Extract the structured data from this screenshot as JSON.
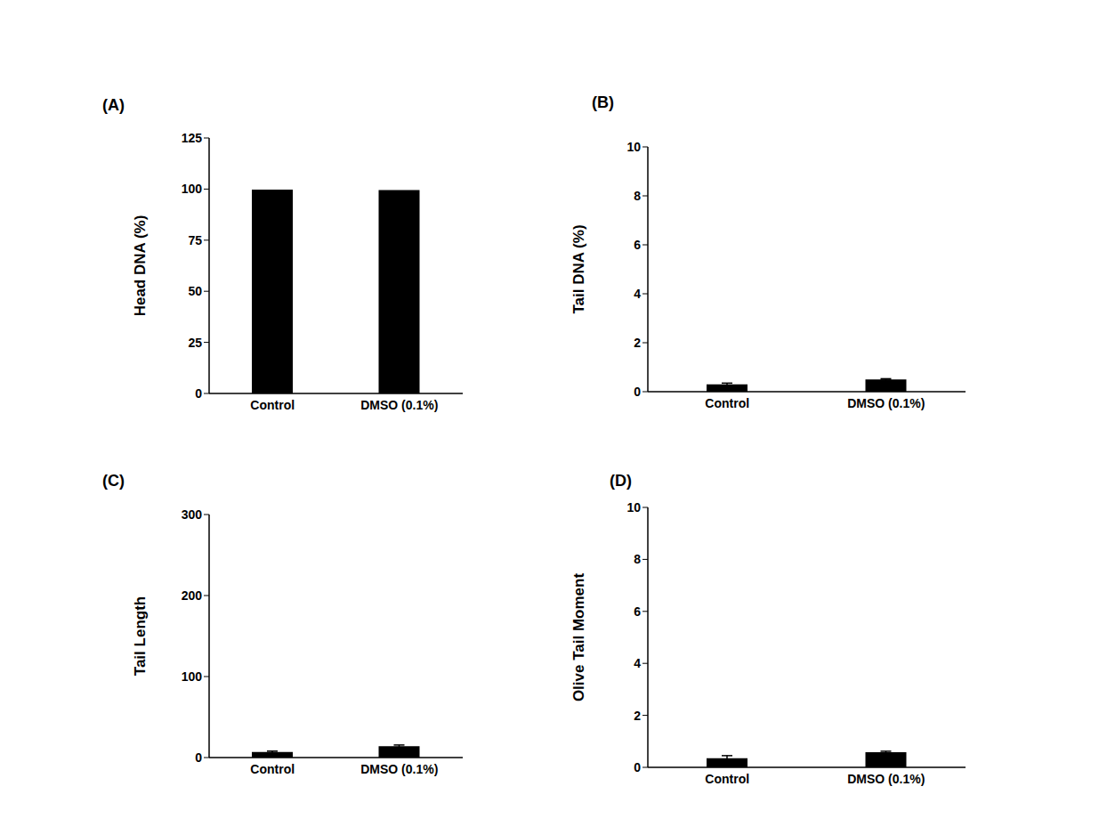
{
  "chart_data": [
    {
      "type": "bar",
      "title": "(A)",
      "y_label": "Head DNA (%)",
      "categories": [
        "Control",
        "DMSO (0.1%)"
      ],
      "values": [
        99.7,
        99.5
      ],
      "color": "#000000",
      "ylim": [
        0,
        125
      ],
      "yticks": [
        0,
        25,
        50,
        75,
        100,
        125
      ],
      "grid": false
    },
    {
      "type": "bar",
      "title": "(B)",
      "y_label": "Tail DNA (%)",
      "categories": [
        "Control",
        "DMSO (0.1%)"
      ],
      "values": [
        0.3,
        0.5
      ],
      "errors": [
        0.05,
        0.03
      ],
      "color": "#000000",
      "ylim": [
        0,
        10
      ],
      "yticks": [
        0,
        2,
        4,
        6,
        8,
        10
      ],
      "grid": false
    },
    {
      "type": "bar",
      "title": "(C)",
      "y_label": "Tail Length",
      "categories": [
        "Control",
        "DMSO (0.1%)"
      ],
      "values": [
        7,
        14
      ],
      "errors": [
        1,
        1.5
      ],
      "color": "#000000",
      "ylim": [
        0,
        300
      ],
      "yticks": [
        0,
        100,
        200,
        300
      ],
      "grid": false
    },
    {
      "type": "bar",
      "title": "(D)",
      "y_label": "Olive Tail Moment",
      "categories": [
        "Control",
        "DMSO (0.1%)"
      ],
      "values": [
        0.35,
        0.58
      ],
      "errors": [
        0.1,
        0.04
      ],
      "color": "#000000",
      "ylim": [
        0,
        10
      ],
      "yticks": [
        0,
        2,
        4,
        6,
        8,
        10
      ],
      "grid": false
    }
  ]
}
